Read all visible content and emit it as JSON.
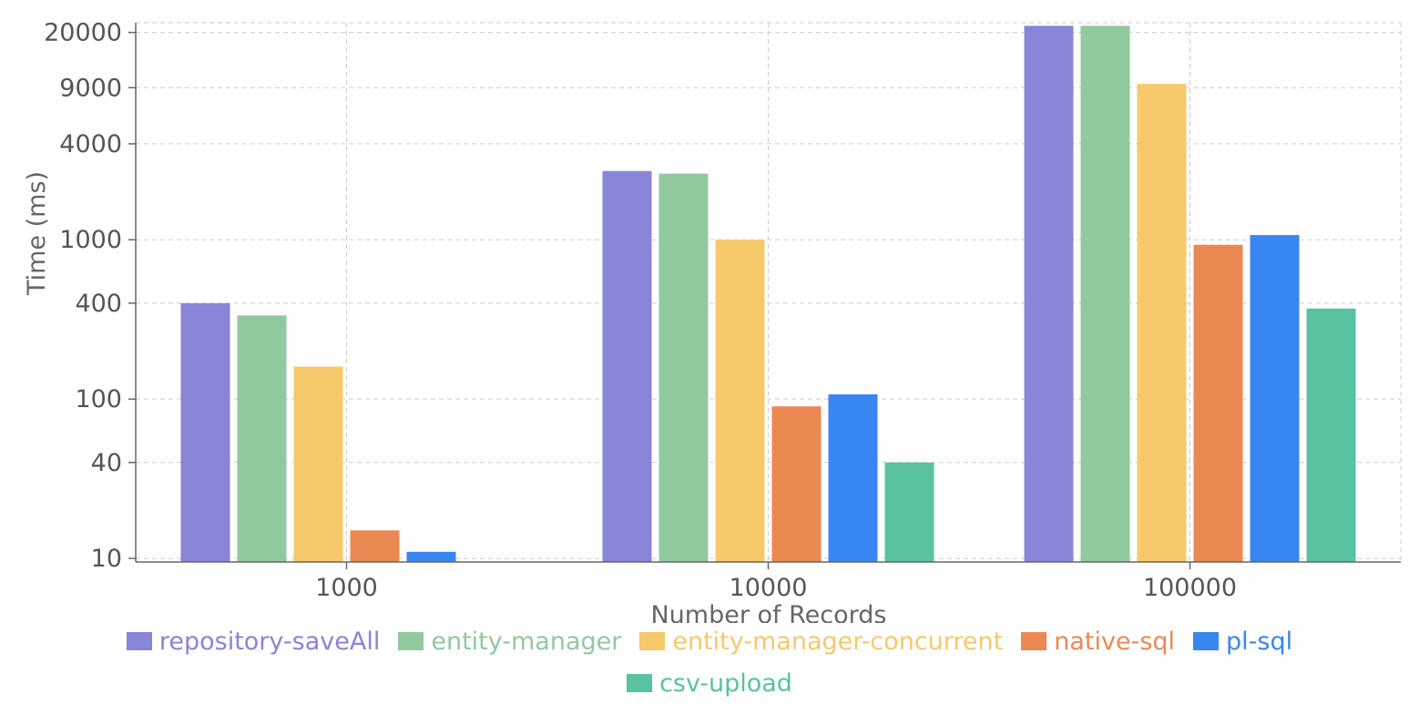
{
  "chart_data": {
    "type": "bar",
    "title": "",
    "xlabel": "Number of Records",
    "ylabel": "Time (ms)",
    "yscale": "log",
    "ylim": [
      9.5,
      23000
    ],
    "yticks": [
      10,
      40,
      100,
      400,
      1000,
      4000,
      9000,
      20000
    ],
    "ytick_labels": [
      "10",
      "40",
      "100",
      "400",
      "1000",
      "4000",
      "9000",
      "20000"
    ],
    "categories": [
      "1000",
      "10000",
      "100000"
    ],
    "grid": true,
    "legend_position": "bottom",
    "series": [
      {
        "name": "repository-saveAll",
        "color": "#8884d8",
        "values": [
          400,
          2700,
          22000
        ]
      },
      {
        "name": "entity-manager",
        "color": "#91c99e",
        "values": [
          335,
          2600,
          22000
        ]
      },
      {
        "name": "entity-manager-concurrent",
        "color": "#f6c96a",
        "values": [
          160,
          1000,
          9500
        ]
      },
      {
        "name": "native-sql",
        "color": "#ec8852",
        "values": [
          15,
          90,
          930
        ]
      },
      {
        "name": "pl-sql",
        "color": "#3886f1",
        "values": [
          11,
          107,
          1070
        ]
      },
      {
        "name": "csv-upload",
        "color": "#59c2a0",
        "values": [
          null,
          40,
          370
        ]
      }
    ]
  }
}
